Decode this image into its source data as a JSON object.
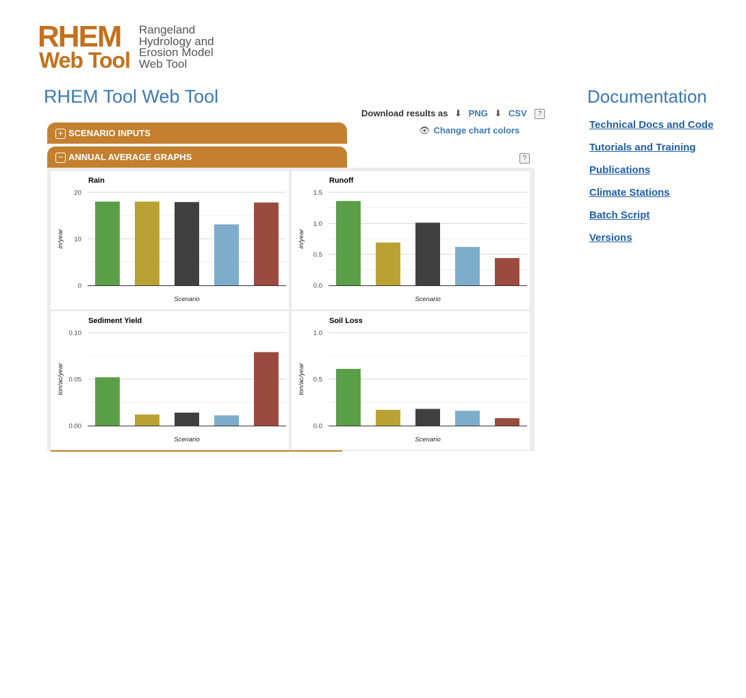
{
  "logo": {
    "line1": "RHEM",
    "line2": "Web Tool",
    "sub": [
      "Rangeland",
      "Hydrology and",
      "Erosion Model",
      "Web Tool"
    ]
  },
  "page_title": "RHEM Tool Web Tool",
  "download": {
    "label": "Download results as",
    "png": "PNG",
    "csv": "CSV",
    "help": "?",
    "download_icon": "download-icon"
  },
  "change_colors": {
    "label": "Change chart colors",
    "icon": "eye-icon"
  },
  "accordion": {
    "scenario_inputs": "SCENARIO INPUTS",
    "annual_graphs": "ANNUAL AVERAGE GRAPHS",
    "expand_symbol": "+",
    "collapse_symbol": "−",
    "help": "?"
  },
  "documentation": {
    "title": "Documentation",
    "links": [
      "Technical Docs and Code",
      "Tutorials and Training",
      "Publications",
      "Climate Stations",
      "Batch Script",
      "Versions"
    ]
  },
  "colors": {
    "accent": "#c4802f",
    "link": "#3a78b5",
    "bar_colors": [
      "#5a9e47",
      "#b9a233",
      "#404040",
      "#7eadcb",
      "#9a4a3e"
    ]
  },
  "chart_data": [
    {
      "type": "bar",
      "title": "Rain",
      "ylabel": "in/year",
      "xlabel": "Scenario",
      "ylim": [
        0,
        20
      ],
      "yticks": [
        "0",
        "10",
        "20"
      ],
      "tick_values": [
        0,
        10,
        20
      ],
      "values": [
        18.0,
        18.0,
        17.9,
        13.1,
        17.8
      ],
      "grid": true
    },
    {
      "type": "bar",
      "title": "Runoff",
      "ylabel": "in/year",
      "xlabel": "Scenario",
      "ylim": [
        0,
        1.5
      ],
      "yticks": [
        "0.0",
        "0.5",
        "1.0",
        "1.5"
      ],
      "tick_values": [
        0,
        0.5,
        1.0,
        1.5
      ],
      "values": [
        1.36,
        0.69,
        1.01,
        0.62,
        0.44
      ],
      "grid": true
    },
    {
      "type": "bar",
      "title": "Sediment Yield",
      "ylabel": "ton/ac/year",
      "xlabel": "Scenario",
      "ylim": [
        0,
        0.1
      ],
      "yticks": [
        "0.00",
        "0.05",
        "0.10"
      ],
      "tick_values": [
        0,
        0.05,
        0.1
      ],
      "values": [
        0.052,
        0.012,
        0.014,
        0.011,
        0.079
      ],
      "grid": true
    },
    {
      "type": "bar",
      "title": "Soil Loss",
      "ylabel": "ton/ac/year",
      "xlabel": "Scenario",
      "ylim": [
        0,
        1.0
      ],
      "yticks": [
        "0.0",
        "0.5",
        "1.0"
      ],
      "tick_values": [
        0,
        0.5,
        1.0
      ],
      "values": [
        0.61,
        0.17,
        0.18,
        0.16,
        0.08
      ],
      "grid": true
    }
  ]
}
